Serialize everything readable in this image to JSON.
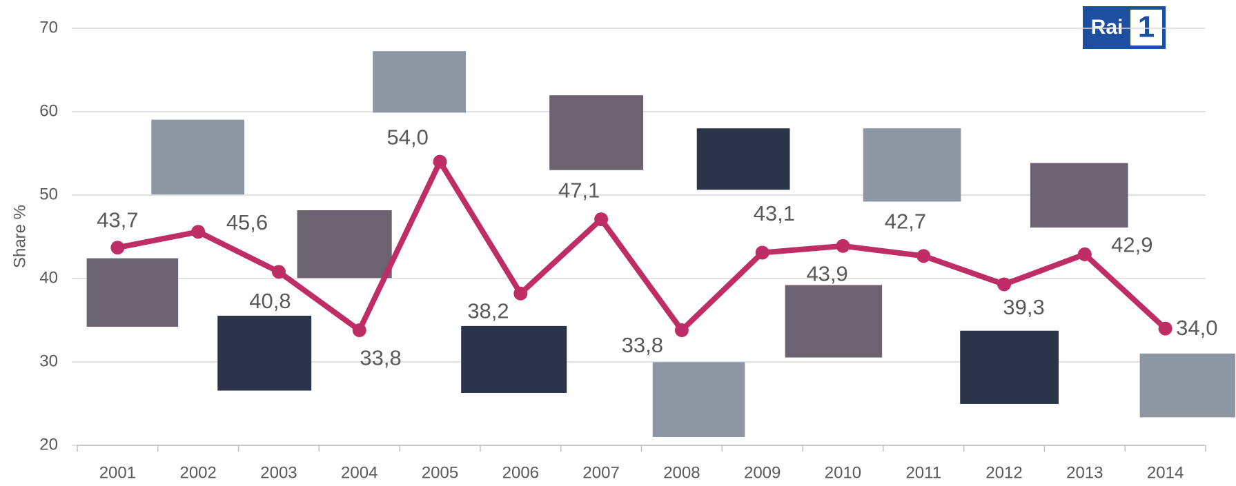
{
  "chart_data": {
    "type": "line",
    "y_label": "Share %",
    "categories": [
      "2001",
      "2002",
      "2003",
      "2004",
      "2005",
      "2006",
      "2007",
      "2008",
      "2009",
      "2010",
      "2011",
      "2012",
      "2013",
      "2014"
    ],
    "series": [
      {
        "color": "#bf2d66",
        "values": [
          43.7,
          45.6,
          40.8,
          33.8,
          54.0,
          38.2,
          47.1,
          33.8,
          43.1,
          43.9,
          42.7,
          39.3,
          42.9,
          34.0
        ],
        "value_labels": [
          "43,7",
          "45,6",
          "40,8",
          "33,8",
          "54,0",
          "38,2",
          "47,1",
          "33,8",
          "43,1",
          "43,9",
          "42,7",
          "39,3",
          "42,9",
          "34,0"
        ]
      }
    ],
    "ylim": [
      20,
      70
    ],
    "yticks": [
      20,
      30,
      40,
      50,
      60,
      70
    ],
    "grid": true
  },
  "logo": {
    "text": "Rai",
    "number": "1"
  }
}
